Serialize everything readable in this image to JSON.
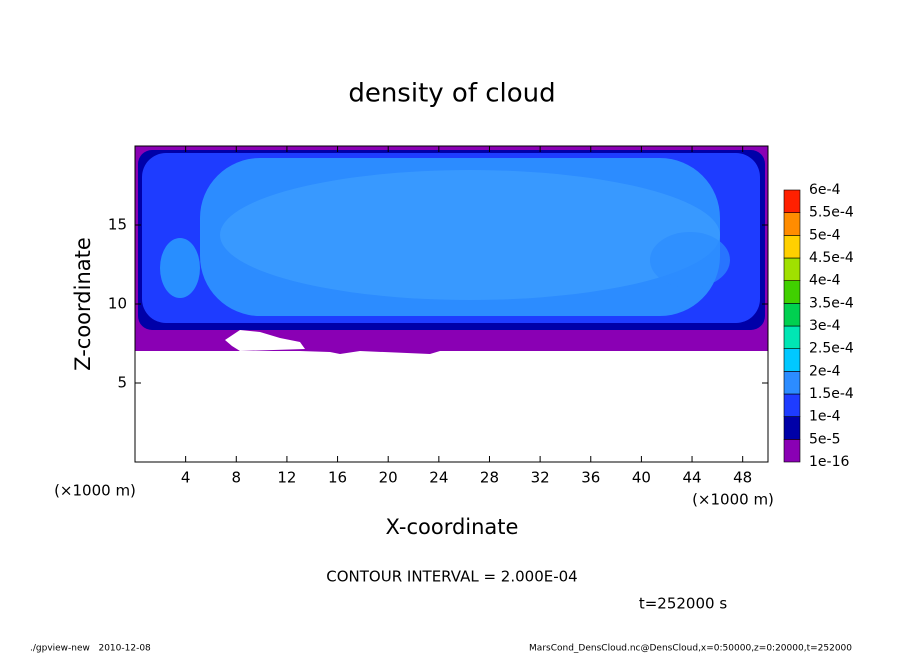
{
  "chart_data": {
    "type": "contour",
    "title": "density of cloud",
    "x_label": "X-coordinate",
    "y_label": "Z-coordinate",
    "x_unit": "(×1000 m)",
    "y_unit": "(×1000 m)",
    "xlim": [
      0,
      50
    ],
    "ylim": [
      0,
      20
    ],
    "xticks": [
      4,
      8,
      12,
      16,
      20,
      24,
      28,
      32,
      36,
      40,
      44,
      48
    ],
    "yticks": [
      5,
      10,
      15
    ],
    "colorbar": {
      "levels": [
        {
          "value": 1e-16,
          "label": "1e-16"
        },
        {
          "value": 5e-05,
          "label": "5e-5"
        },
        {
          "value": 0.0001,
          "label": "1e-4"
        },
        {
          "value": 0.00015,
          "label": "1.5e-4"
        },
        {
          "value": 0.0002,
          "label": "2e-4"
        },
        {
          "value": 0.00025,
          "label": "2.5e-4"
        },
        {
          "value": 0.0003,
          "label": "3e-4"
        },
        {
          "value": 0.00035,
          "label": "3.5e-4"
        },
        {
          "value": 0.0004,
          "label": "4e-4"
        },
        {
          "value": 0.00045,
          "label": "4.5e-4"
        },
        {
          "value": 0.0005,
          "label": "5e-4"
        },
        {
          "value": 0.00055,
          "label": "5.5e-4"
        },
        {
          "value": 0.0006,
          "label": "6e-4"
        }
      ],
      "colors": [
        "#8a00b4",
        "#0000a8",
        "#1e3cff",
        "#2c8cff",
        "#00c8ff",
        "#00e6b4",
        "#00d050",
        "#40d000",
        "#a0e000",
        "#ffd000",
        "#ff8c00",
        "#ff2000",
        "#ff8080"
      ]
    },
    "contour_interval": "CONTOUR INTERVAL = 2.000E-04",
    "time_label": "t=252000 s",
    "footer_left": "./gpview-new   2010-12-08",
    "footer_right": "MarsCond_DensCloud.nc@DensCloud,x=0:50000,z=0:20000,t=252000"
  }
}
